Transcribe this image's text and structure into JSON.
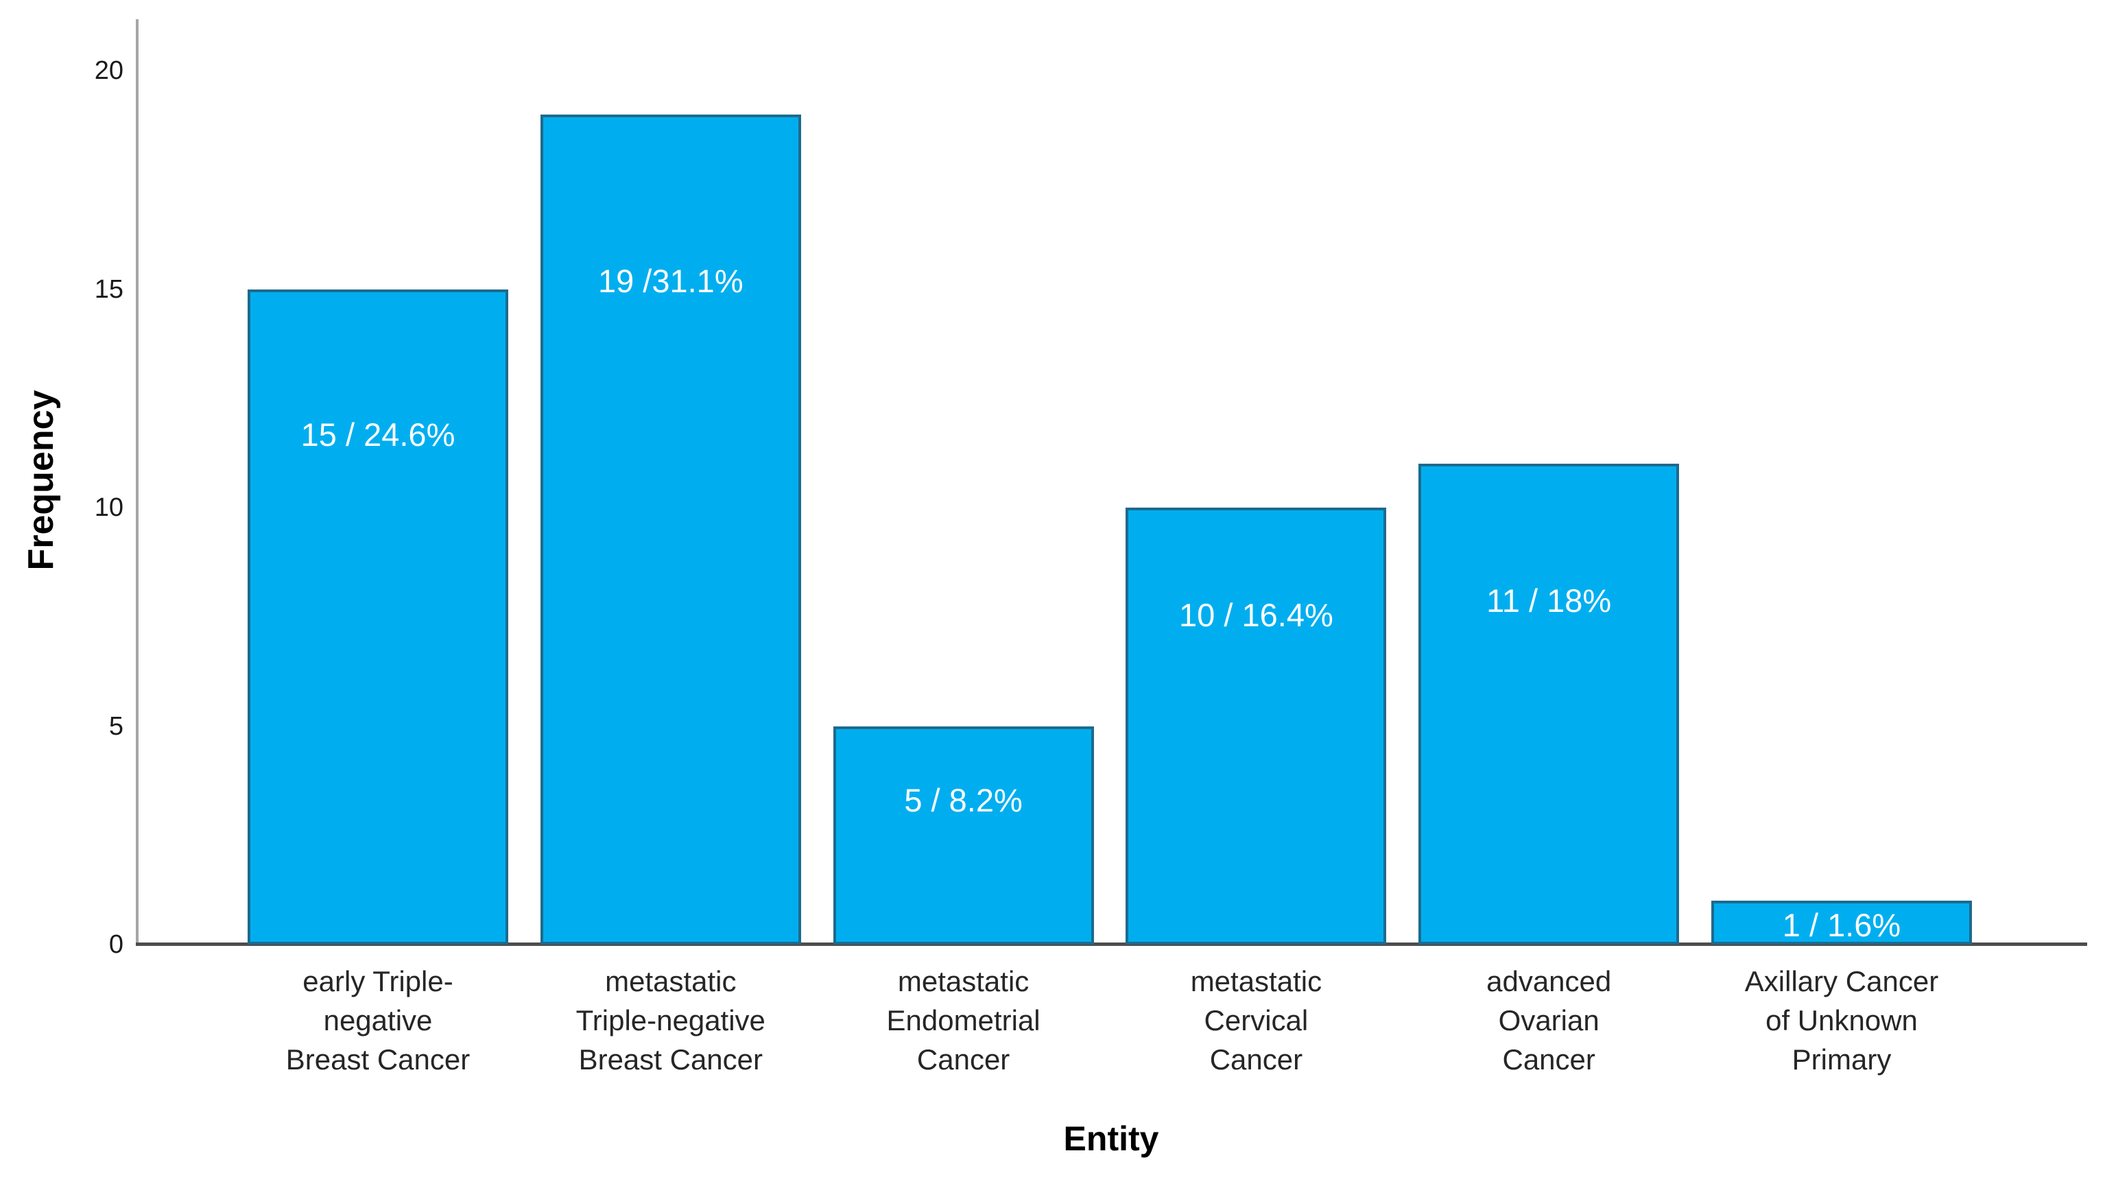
{
  "chart_data": {
    "type": "bar",
    "title": "",
    "xlabel": "Entity",
    "ylabel": "Frequency",
    "categories": [
      "early Triple-negative Breast Cancer",
      "metastatic Triple-negative Breast Cancer",
      "metastatic Endometrial Cancer",
      "metastatic Cervical Cancer",
      "advanced Ovarian Cancer",
      "Axillary Cancer of Unknown Primary"
    ],
    "category_lines": [
      [
        "early Triple-",
        "negative",
        "Breast Cancer"
      ],
      [
        "metastatic",
        "Triple-negative",
        "Breast Cancer"
      ],
      [
        "metastatic",
        "Endometrial",
        "Cancer"
      ],
      [
        "metastatic",
        "Cervical",
        "Cancer"
      ],
      [
        "advanced",
        "Ovarian",
        "Cancer"
      ],
      [
        "Axillary Cancer",
        "of Unknown",
        "Primary"
      ]
    ],
    "values": [
      15,
      19,
      5,
      10,
      11,
      1
    ],
    "percentages": [
      24.6,
      31.1,
      8.2,
      16.4,
      18,
      1.6
    ],
    "bar_labels": [
      "15 / 24.6%",
      "19 /31.1%",
      "5 / 8.2%",
      "10 / 16.4%",
      "11 / 18%",
      "1 / 1.6%"
    ],
    "yticks": [
      0,
      5,
      10,
      15,
      20
    ],
    "ylim": [
      0,
      21.2
    ],
    "grid": false,
    "legend": null,
    "colors": {
      "bar_fill": "#00AEEF",
      "bar_border": "#1E6A8D",
      "value_label": "#FFFFFF",
      "y_axis_line": "#A6A6A6",
      "x_axis_line": "#4D4D4D",
      "text": "#1A1A1A"
    }
  }
}
